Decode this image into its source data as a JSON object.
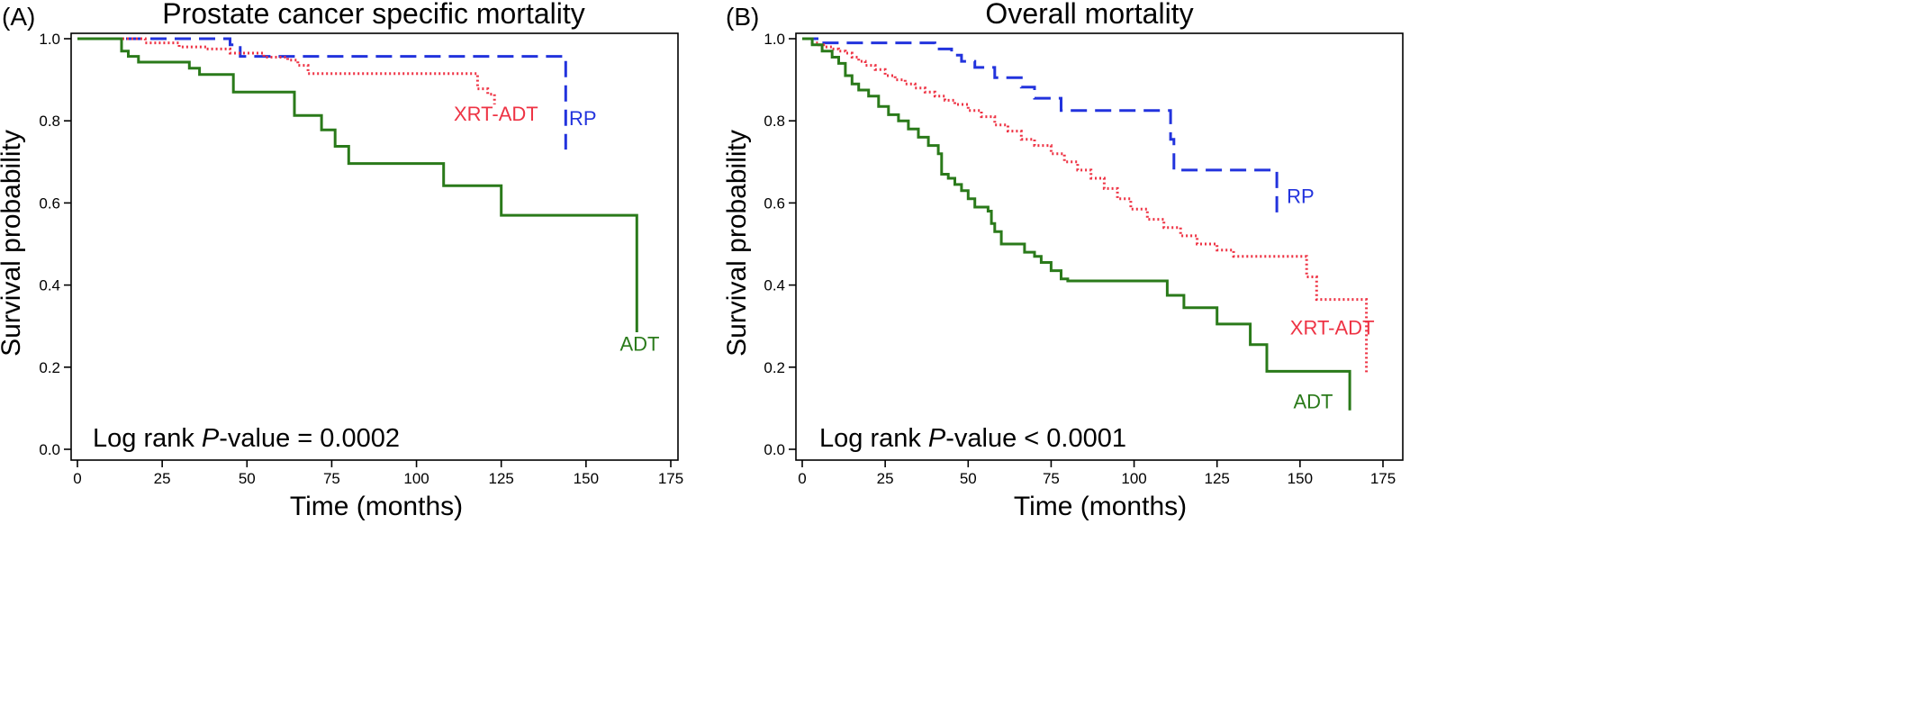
{
  "chart_data": [
    {
      "type": "line",
      "panel_tag": "(A)",
      "title": "Prostate cancer specific mortality",
      "xlabel": "Time (months)",
      "ylabel": "Survival probability",
      "xlim": [
        0,
        175
      ],
      "ylim": [
        0,
        1
      ],
      "x_ticks": [
        0,
        25,
        50,
        75,
        100,
        125,
        150,
        175
      ],
      "x_tick_labels": [
        "0",
        "25",
        "50",
        "75",
        "100",
        "125",
        "150",
        "175"
      ],
      "y_ticks": [
        0,
        0.2,
        0.4,
        0.6,
        0.8,
        1.0
      ],
      "y_tick_labels": [
        "0.0",
        "0.2",
        "0.4",
        "0.6",
        "0.8",
        "1.0"
      ],
      "annotation": {
        "prefix": "Log rank ",
        "italic": "P",
        "suffix": "-value = 0.0002"
      },
      "series": [
        {
          "name": "RP",
          "color": "#2233dd",
          "style": "dashed",
          "label_at": [
            145,
            0.79
          ],
          "x": [
            0,
            40,
            45,
            48,
            109,
            144,
            144
          ],
          "y": [
            1.0,
            1.0,
            0.985,
            0.957,
            0.957,
            0.877,
            0.73
          ]
        },
        {
          "name": "XRT-ADT",
          "color": "#ee3344",
          "style": "dotted",
          "label_at": [
            111,
            0.8
          ],
          "x": [
            0,
            12,
            20,
            30,
            38,
            45,
            55,
            62,
            65,
            68,
            117,
            118,
            121,
            123
          ],
          "y": [
            1.0,
            1.0,
            0.99,
            0.98,
            0.975,
            0.965,
            0.955,
            0.948,
            0.935,
            0.915,
            0.915,
            0.878,
            0.865,
            0.84
          ]
        },
        {
          "name": "ADT",
          "color": "#2a7a1a",
          "style": "solid",
          "label_at": [
            160,
            0.24
          ],
          "x": [
            0,
            12,
            13,
            15,
            18,
            33,
            36,
            46,
            62,
            64,
            72,
            76,
            80,
            108,
            125,
            165,
            165
          ],
          "y": [
            1.0,
            1.0,
            0.97,
            0.957,
            0.943,
            0.928,
            0.913,
            0.87,
            0.87,
            0.813,
            0.778,
            0.738,
            0.696,
            0.642,
            0.57,
            0.57,
            0.285
          ]
        }
      ]
    },
    {
      "type": "line",
      "panel_tag": "(B)",
      "title": "Overall mortality",
      "xlabel": "Time (months)",
      "ylabel": "Survival probability",
      "xlim": [
        0,
        175
      ],
      "ylim": [
        0,
        1
      ],
      "x_ticks": [
        0,
        25,
        50,
        75,
        100,
        125,
        150,
        175
      ],
      "x_tick_labels": [
        "0",
        "25",
        "50",
        "75",
        "100",
        "125",
        "150",
        "175"
      ],
      "y_ticks": [
        0,
        0.2,
        0.4,
        0.6,
        0.8,
        1.0
      ],
      "y_tick_labels": [
        "0.0",
        "0.2",
        "0.4",
        "0.6",
        "0.8",
        "1.0"
      ],
      "annotation": {
        "prefix": "Log rank ",
        "italic": "P",
        "suffix": "-value < 0.0001"
      },
      "series": [
        {
          "name": "RP",
          "color": "#2233dd",
          "style": "dashed",
          "label_at": [
            146,
            0.6
          ],
          "x": [
            0,
            5,
            37,
            40,
            45,
            48,
            52,
            58,
            66,
            70,
            78,
            110,
            111,
            112,
            143,
            143
          ],
          "y": [
            1.0,
            0.99,
            0.99,
            0.975,
            0.96,
            0.945,
            0.93,
            0.905,
            0.882,
            0.855,
            0.825,
            0.825,
            0.755,
            0.68,
            0.68,
            0.565
          ]
        },
        {
          "name": "XRT-ADT",
          "color": "#ee3344",
          "style": "dotted",
          "label_at": [
            147,
            0.28
          ],
          "x": [
            0,
            3,
            5,
            7,
            9,
            11,
            13,
            15,
            17,
            19,
            22,
            25,
            28,
            31,
            34,
            37,
            40,
            43,
            46,
            50,
            54,
            58,
            62,
            66,
            70,
            75,
            79,
            83,
            87,
            91,
            95,
            99,
            104,
            109,
            114,
            119,
            125,
            130,
            148,
            152,
            155,
            170,
            170
          ],
          "y": [
            1.0,
            0.99,
            0.985,
            0.98,
            0.975,
            0.97,
            0.965,
            0.955,
            0.945,
            0.935,
            0.925,
            0.91,
            0.9,
            0.89,
            0.88,
            0.87,
            0.86,
            0.85,
            0.84,
            0.825,
            0.81,
            0.79,
            0.775,
            0.755,
            0.74,
            0.72,
            0.7,
            0.68,
            0.66,
            0.635,
            0.61,
            0.585,
            0.56,
            0.54,
            0.52,
            0.5,
            0.485,
            0.47,
            0.47,
            0.42,
            0.365,
            0.365,
            0.185
          ]
        },
        {
          "name": "ADT",
          "color": "#2a7a1a",
          "style": "solid",
          "label_at": [
            148,
            0.1
          ],
          "x": [
            0,
            3,
            6,
            9,
            11,
            13,
            15,
            17,
            20,
            23,
            26,
            29,
            32,
            35,
            38,
            41,
            42,
            44,
            46,
            48,
            50,
            52,
            56,
            57,
            58,
            60,
            67,
            70,
            72,
            75,
            78,
            80,
            108,
            110,
            115,
            125,
            135,
            140,
            165,
            165
          ],
          "y": [
            1.0,
            0.985,
            0.97,
            0.955,
            0.94,
            0.91,
            0.89,
            0.875,
            0.86,
            0.835,
            0.815,
            0.8,
            0.78,
            0.76,
            0.74,
            0.72,
            0.67,
            0.66,
            0.645,
            0.63,
            0.61,
            0.59,
            0.58,
            0.55,
            0.53,
            0.5,
            0.48,
            0.47,
            0.455,
            0.435,
            0.415,
            0.41,
            0.41,
            0.375,
            0.345,
            0.305,
            0.255,
            0.19,
            0.19,
            0.095
          ]
        }
      ]
    }
  ]
}
